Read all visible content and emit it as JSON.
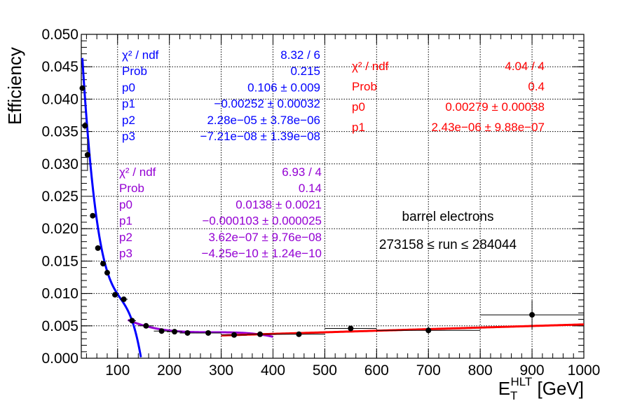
{
  "chart_data": {
    "type": "scatter",
    "title": "",
    "xlabel": "E_T^{HLT} [GeV]",
    "ylabel": "Efficiency",
    "xlabel_parts": {
      "main": "E",
      "sub": "T",
      "sup": "HLT",
      "unit": " [GeV]"
    },
    "xlim": [
      30,
      1000
    ],
    "ylim": [
      0,
      0.05
    ],
    "x_ticks": [
      "100",
      "200",
      "300",
      "400",
      "500",
      "600",
      "700",
      "800",
      "900",
      "1000"
    ],
    "y_ticks": [
      "0.000",
      "0.005",
      "0.010",
      "0.015",
      "0.020",
      "0.025",
      "0.030",
      "0.035",
      "0.040",
      "0.045",
      "0.050"
    ],
    "grid": true,
    "points": [
      {
        "x": 32,
        "y": 0.0417,
        "xerr": 2,
        "yerr": 0.0004
      },
      {
        "x": 37,
        "y": 0.0359,
        "xerr": 2.5,
        "yerr": 0.0006
      },
      {
        "x": 42,
        "y": 0.0314,
        "xerr": 2.5,
        "yerr": 0.0025
      },
      {
        "x": 52,
        "y": 0.022,
        "xerr": 5,
        "yerr": 0.0003
      },
      {
        "x": 62,
        "y": 0.017,
        "xerr": 5,
        "yerr": 0.0003
      },
      {
        "x": 72,
        "y": 0.0146,
        "xerr": 5,
        "yerr": 0.0003
      },
      {
        "x": 80,
        "y": 0.0132,
        "xerr": 5,
        "yerr": 0.0003
      },
      {
        "x": 95,
        "y": 0.0098,
        "xerr": 5,
        "yerr": 0.0003
      },
      {
        "x": 112,
        "y": 0.0091,
        "xerr": 7.5,
        "yerr": 0.0003
      },
      {
        "x": 128,
        "y": 0.0058,
        "xerr": 7.5,
        "yerr": 0.0003
      },
      {
        "x": 155,
        "y": 0.005,
        "xerr": 15,
        "yerr": 0.0002
      },
      {
        "x": 185,
        "y": 0.0042,
        "xerr": 15,
        "yerr": 0.0002
      },
      {
        "x": 210,
        "y": 0.0041,
        "xerr": 15,
        "yerr": 0.0002
      },
      {
        "x": 235,
        "y": 0.0039,
        "xerr": 15,
        "yerr": 0.0002
      },
      {
        "x": 275,
        "y": 0.0039,
        "xerr": 25,
        "yerr": 0.0002
      },
      {
        "x": 325,
        "y": 0.0036,
        "xerr": 25,
        "yerr": 0.0002
      },
      {
        "x": 375,
        "y": 0.0037,
        "xerr": 25,
        "yerr": 0.0003
      },
      {
        "x": 450,
        "y": 0.0037,
        "xerr": 50,
        "yerr": 0.0003
      },
      {
        "x": 550,
        "y": 0.0046,
        "xerr": 50,
        "yerr": 0.0004
      },
      {
        "x": 700,
        "y": 0.0043,
        "xerr": 100,
        "yerr": 0.0005
      },
      {
        "x": 900,
        "y": 0.0067,
        "xerr": 100,
        "yerr": 0.0022
      }
    ],
    "fits": [
      {
        "color": "#0000ff",
        "xrange": [
          32,
          145
        ],
        "params": [
          0.106,
          -0.00252,
          2.28e-05,
          -7.21e-08
        ]
      },
      {
        "color": "#9400d3",
        "xrange": [
          120,
          400
        ],
        "params": [
          0.0138,
          -0.000103,
          3.62e-07,
          -4.25e-10
        ]
      },
      {
        "color": "#ff0000",
        "xrange": [
          300,
          1000
        ],
        "params": [
          0.00279,
          2.43e-06
        ]
      }
    ],
    "stat_boxes": [
      {
        "color": "#0000ff",
        "rows": [
          {
            "label": "χ² / ndf",
            "value": "8.32 / 6"
          },
          {
            "label": "Prob",
            "value": "0.215"
          },
          {
            "label": "p0",
            "value": "0.106 ± 0.009"
          },
          {
            "label": "p1",
            "value": "−0.00252 ± 0.00032"
          },
          {
            "label": "p2",
            "value": "2.28e−05 ± 3.78e−06"
          },
          {
            "label": "p3",
            "value": "−7.21e−08 ± 1.39e−08"
          }
        ]
      },
      {
        "color": "#9400d3",
        "rows": [
          {
            "label": "χ² / ndf",
            "value": "6.93 / 4"
          },
          {
            "label": "Prob",
            "value": "0.14"
          },
          {
            "label": "p0",
            "value": "0.0138 ± 0.0021"
          },
          {
            "label": "p1",
            "value": "−0.000103 ± 0.000025"
          },
          {
            "label": "p2",
            "value": "3.62e−07 ± 9.76e−08"
          },
          {
            "label": "p3",
            "value": "−4.25e−10 ± 1.24e−10"
          }
        ]
      },
      {
        "color": "#ff0000",
        "rows": [
          {
            "label": "χ² / ndf",
            "value": "4.04 / 4"
          },
          {
            "label": "Prob",
            "value": "0.4"
          },
          {
            "label": "p0",
            "value": "0.00279 ± 0.00038"
          },
          {
            "label": "p1",
            "value": "2.43e−06 ± 9.88e−07"
          }
        ]
      }
    ],
    "annotations": [
      "barrel electrons",
      "273158 ≤ run ≤ 284044"
    ]
  }
}
